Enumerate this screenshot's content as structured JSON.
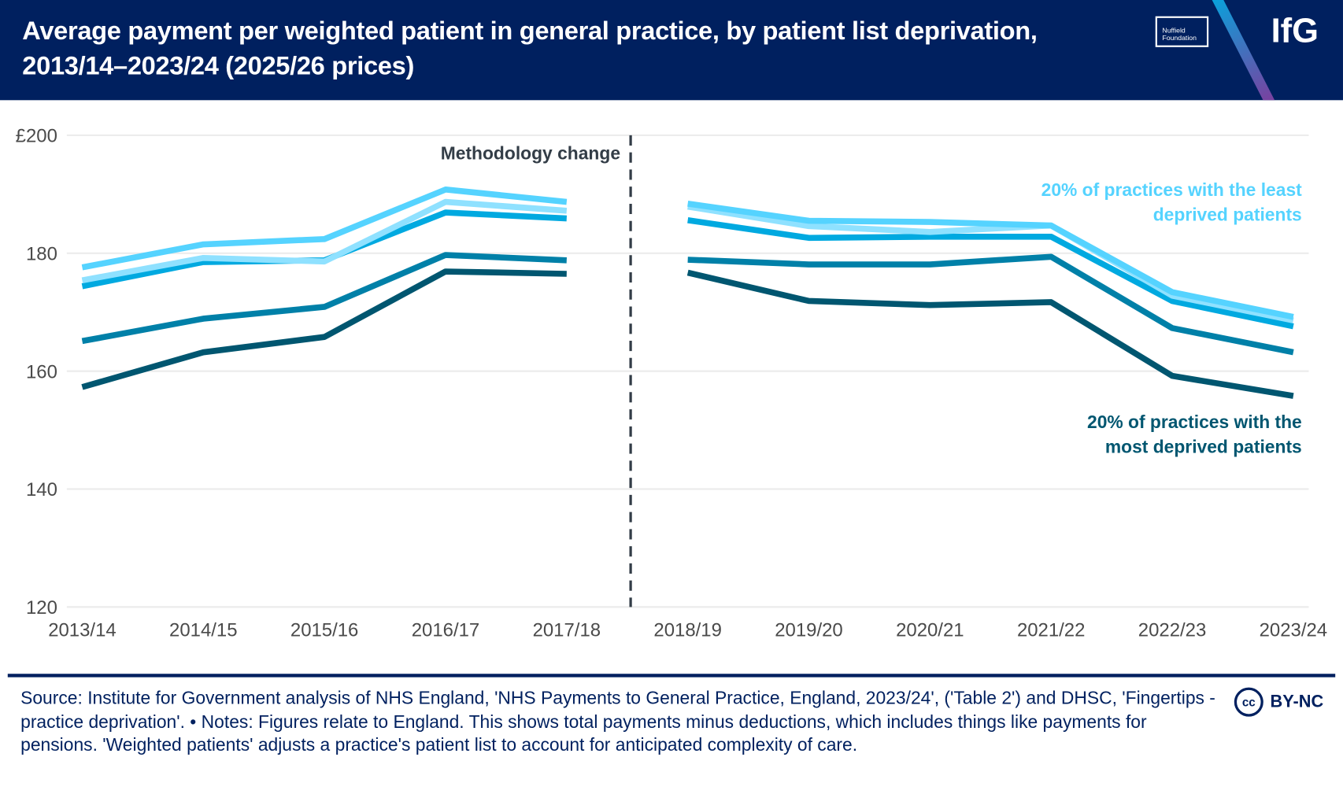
{
  "header": {
    "title": "Average payment per weighted patient in general practice, by patient list deprivation, 2013/14–2023/24 (2025/26 prices)",
    "nuffield_logo": "Nuffield Foundation",
    "ifg_logo": "IfG"
  },
  "colors": {
    "header_bg": "#00205f",
    "annotation": "#333d47"
  },
  "chart_data": {
    "type": "line",
    "title": "Average payment per weighted patient in general practice, by patient list deprivation, 2013/14–2023/24 (2025/26 prices)",
    "xlabel": "",
    "ylabel": "",
    "categories": [
      "2013/14",
      "2014/15",
      "2015/16",
      "2016/17",
      "2017/18",
      "2018/19",
      "2019/20",
      "2020/21",
      "2021/22",
      "2022/23",
      "2023/24"
    ],
    "ylim": [
      120,
      200
    ],
    "yticks": [
      {
        "value": 200,
        "label": "£200"
      },
      {
        "value": 180,
        "label": "180"
      },
      {
        "value": 160,
        "label": "160"
      },
      {
        "value": 140,
        "label": "140"
      },
      {
        "value": 120,
        "label": "120"
      }
    ],
    "grid": true,
    "break_after_index": 4,
    "annotation": "Methodology change",
    "series": [
      {
        "color": "#8fe1ff",
        "label": "",
        "values": [
          175.4,
          179.2,
          178.6,
          188.7,
          187.2,
          187.9,
          184.6,
          183.6,
          184.7,
          172.8,
          168.6
        ]
      },
      {
        "color": "#55d3ff",
        "label": "20% of practices with the least deprived patients",
        "label_lines": [
          "20% of practices with the least",
          "deprived patients"
        ],
        "values": [
          177.6,
          181.5,
          182.4,
          190.8,
          188.7,
          188.4,
          185.5,
          185.3,
          184.7,
          173.4,
          169.2
        ]
      },
      {
        "color": "#00a9e0",
        "label": "",
        "values": [
          174.4,
          178.5,
          178.8,
          186.9,
          185.9,
          185.6,
          182.6,
          182.8,
          182.8,
          171.9,
          167.6
        ]
      },
      {
        "color": "#0080a8",
        "label": "",
        "values": [
          165.1,
          168.9,
          170.9,
          179.7,
          178.8,
          178.9,
          178.1,
          178.1,
          179.4,
          167.3,
          163.2
        ]
      },
      {
        "color": "#005670",
        "label": "20% of practices with the most deprived patients",
        "label_lines": [
          "20% of practices with the",
          "most deprived patients"
        ],
        "values": [
          157.3,
          163.2,
          165.8,
          176.9,
          176.5,
          176.7,
          171.9,
          171.2,
          171.7,
          159.2,
          155.8
        ]
      }
    ]
  },
  "footer": {
    "source": "Source: Institute for Government analysis of NHS England, 'NHS Payments to General Practice, England, 2023/24', ('Table 2') and DHSC, 'Fingertips - practice deprivation'. • Notes: Figures relate to England. This shows total payments minus deductions, which includes things like payments for pensions. 'Weighted patients' adjusts a practice's patient list to account for anticipated complexity of care.",
    "cc_symbol": "cc",
    "license": "BY-NC"
  }
}
